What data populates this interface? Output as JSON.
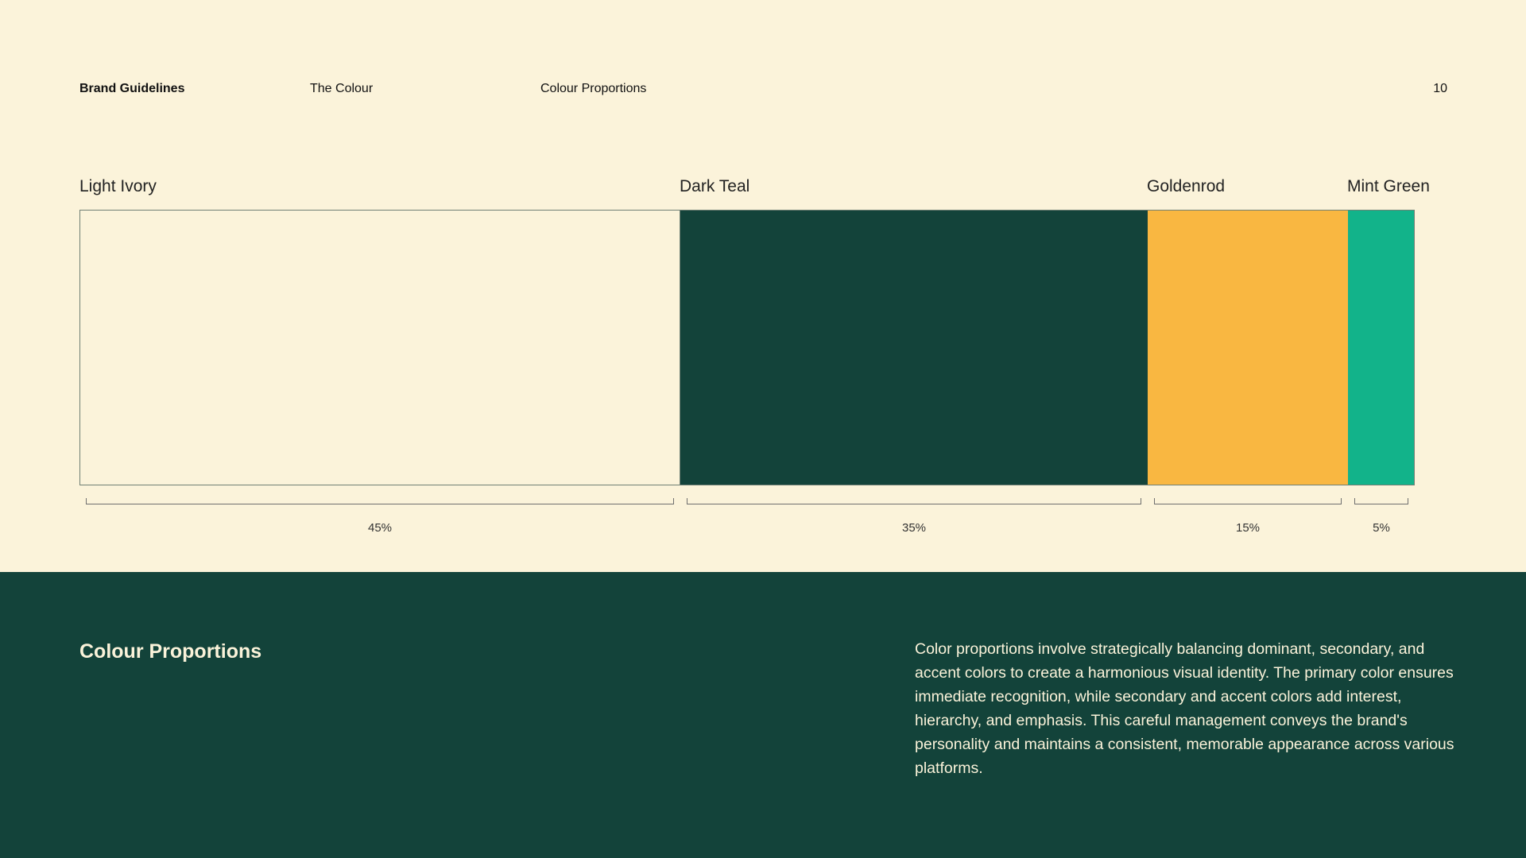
{
  "header": {
    "brand": "Brand Guidelines",
    "section": "The Colour",
    "subsection": "Colour Proportions",
    "page_number": "10"
  },
  "colors": [
    {
      "name": "Light Ivory",
      "hex": "#FBF3DA",
      "percent_label": "45%",
      "percent": 45,
      "outlined": true
    },
    {
      "name": "Dark Teal",
      "hex": "#13433A",
      "percent_label": "35%",
      "percent": 35,
      "outlined": false
    },
    {
      "name": "Goldenrod",
      "hex": "#F9B741",
      "percent_label": "15%",
      "percent": 15,
      "outlined": false
    },
    {
      "name": "Mint Green",
      "hex": "#12B38A",
      "percent_label": "5%",
      "percent": 5,
      "outlined": false
    }
  ],
  "footer": {
    "title": "Colour Proportions",
    "body": "Color proportions involve strategically balancing dominant, secondary, and accent colors to create a harmonious visual identity. The primary color ensures immediate recognition, while secondary and accent colors add interest, hierarchy, and emphasis. This careful management conveys the brand's personality and maintains a consistent, memorable appearance across various platforms."
  }
}
